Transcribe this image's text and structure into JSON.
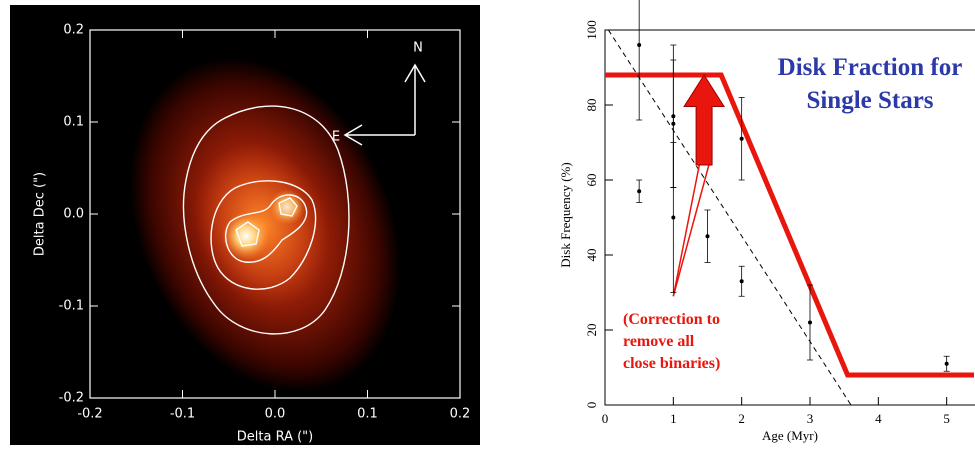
{
  "chart_data": [
    {
      "type": "image",
      "xlabel": "Delta RA (\")",
      "ylabel": "Delta Dec (\")",
      "xlim": [
        -0.2,
        0.2
      ],
      "ylim": [
        -0.2,
        0.2
      ],
      "xticks": [
        -0.2,
        -0.1,
        {
          "value": 0,
          "label": "0.0"
        },
        0.1,
        0.2
      ],
      "yticks": [
        -0.2,
        -0.1,
        {
          "value": 0,
          "label": "0.0"
        },
        0.1,
        0.2
      ],
      "annotations": [
        "N",
        "E"
      ]
    },
    {
      "type": "errorbar",
      "title": [
        "Disk Fraction for",
        "Single Stars"
      ],
      "xlabel": "Age (Myr)",
      "ylabel": "Disk Frequency (%)",
      "xlim": [
        0,
        5.4
      ],
      "ylim": [
        0,
        100
      ],
      "xticks": [
        0,
        1,
        2,
        3,
        4,
        5
      ],
      "yticks": [
        0,
        20,
        40,
        60,
        80,
        100
      ],
      "points": {
        "x": [
          0.5,
          0.5,
          1,
          1,
          1,
          1.5,
          2,
          2,
          3,
          5
        ],
        "y": [
          96,
          57,
          77,
          75,
          50,
          45,
          71,
          33,
          22,
          11
        ],
        "err": [
          20,
          3,
          19,
          17,
          20,
          7,
          11,
          4,
          10,
          2
        ],
        "color": "#000000"
      },
      "lines": [
        {
          "color": "#e8160c",
          "style": "solid",
          "width": 5,
          "x": [
            0,
            1.7,
            3.55,
            5.4
          ],
          "y": [
            88,
            88,
            8,
            8
          ]
        },
        {
          "color": "#000000",
          "style": "dashed",
          "width": 1,
          "x": [
            0.05,
            3.6
          ],
          "y": [
            100,
            0
          ]
        },
        {
          "color": "#e8160c",
          "style": "solid",
          "width": 1.5,
          "x": [
            1,
            1.38
          ],
          "y": [
            29,
            64
          ]
        },
        {
          "color": "#e8160c",
          "style": "solid",
          "width": 1.5,
          "x": [
            1,
            1.52
          ],
          "y": [
            29,
            64
          ]
        }
      ],
      "arrow": {
        "x": 1.45,
        "y": [
          64,
          88
        ],
        "color": "#e8160c"
      },
      "annotation": [
        "(Correction to",
        "remove all",
        "close binaries)"
      ]
    }
  ]
}
